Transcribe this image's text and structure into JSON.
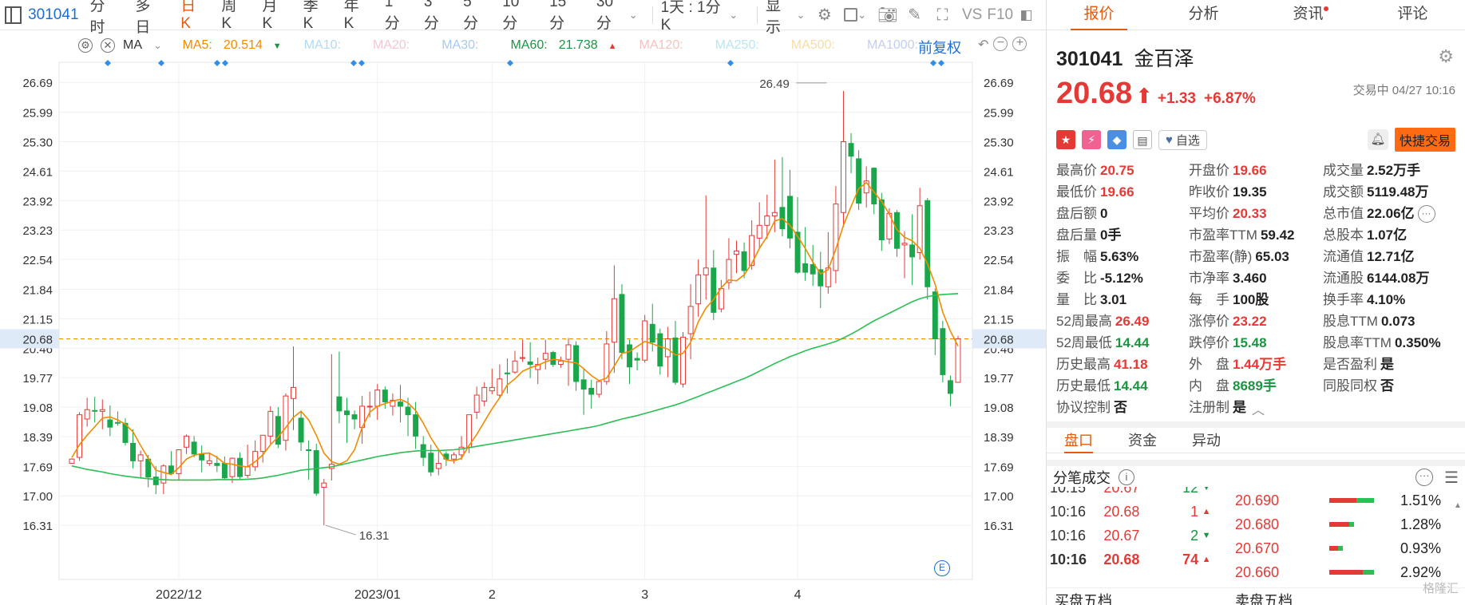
{
  "toolbar": {
    "code": "301041",
    "periods": [
      "分时",
      "多日",
      "日K",
      "周K",
      "月K",
      "季K",
      "年K",
      "1分",
      "3分",
      "5分",
      "10分",
      "15分",
      "30分"
    ],
    "active_period": "日K",
    "day_setting": "1天 : 1分K",
    "display_label": "显示",
    "vs_label": "VS",
    "f10_label": "F10"
  },
  "ma_legend": {
    "indicator": "MA",
    "items": [
      {
        "label": "MA5:",
        "value": "20.514",
        "color": "#f08c00",
        "arrow": "▼",
        "arrow_color": "#1a9641"
      },
      {
        "label": "MA10:",
        "value": "",
        "color": "#b3d9f5"
      },
      {
        "label": "MA20:",
        "value": "",
        "color": "#f5c6da"
      },
      {
        "label": "MA30:",
        "value": "",
        "color": "#a9c9f0"
      },
      {
        "label": "MA60:",
        "value": "21.738",
        "color": "#1a9641",
        "arrow": "▲",
        "arrow_color": "#e53935"
      },
      {
        "label": "MA120:",
        "value": "",
        "color": "#f5c2c2"
      },
      {
        "label": "MA250:",
        "value": "",
        "color": "#b8e6f2"
      },
      {
        "label": "MA500:",
        "value": "",
        "color": "#f7dca6"
      },
      {
        "label": "MA1000:",
        "value": "",
        "color": "#c5cdf2"
      }
    ],
    "fuquan_label": "前复权"
  },
  "chart_data": {
    "type": "candlestick",
    "y_ticks": [
      26.69,
      25.99,
      25.3,
      24.61,
      23.92,
      23.23,
      22.54,
      21.84,
      21.15,
      20.46,
      19.77,
      19.08,
      18.39,
      17.69,
      17.0,
      16.31
    ],
    "y_tick_labels": [
      "26.69",
      "25.99",
      "25.30",
      "24.61",
      "23.92",
      "23.23",
      "22.54",
      "21.84",
      "21.15",
      "20.46",
      "19.77",
      "19.08",
      "18.39",
      "17.69",
      "17.00",
      "16.31"
    ],
    "ylim": [
      15.9,
      27.05
    ],
    "x_labels": [
      {
        "label": "2022/12",
        "index": 14
      },
      {
        "label": "2023/01",
        "index": 40
      },
      {
        "label": "2",
        "index": 55
      },
      {
        "label": "3",
        "index": 75
      },
      {
        "label": "4",
        "index": 95
      }
    ],
    "current_price": 20.68,
    "current_price_label": "20.68",
    "high_label": "26.49",
    "high_index": 99,
    "low_label": "16.31",
    "low_index": 33,
    "candles": [
      [
        17.76,
        17.88,
        17.86,
        17.78
      ],
      [
        17.9,
        18.96,
        18.9,
        17.82
      ],
      [
        18.8,
        19.3,
        19.02,
        18.62
      ],
      [
        19.0,
        19.32,
        18.99,
        18.72
      ],
      [
        18.98,
        19.26,
        19.02,
        18.56
      ],
      [
        18.78,
        19.12,
        18.61,
        18.4
      ],
      [
        18.72,
        18.98,
        18.71,
        18.64
      ],
      [
        18.7,
        18.82,
        18.25,
        18.18
      ],
      [
        18.23,
        18.56,
        17.82,
        17.64
      ],
      [
        17.82,
        18.06,
        17.96,
        17.42
      ],
      [
        17.86,
        17.96,
        17.44,
        17.2
      ],
      [
        17.44,
        17.7,
        17.26,
        17.04
      ],
      [
        17.3,
        17.74,
        17.7,
        17.04
      ],
      [
        17.7,
        18.05,
        17.52,
        17.5
      ],
      [
        17.52,
        18.08,
        18.08,
        17.38
      ],
      [
        18.14,
        18.44,
        18.4,
        17.98
      ],
      [
        18.26,
        18.4,
        17.98,
        17.9
      ],
      [
        17.98,
        18.18,
        17.84,
        17.55
      ],
      [
        17.76,
        18.02,
        17.82,
        17.7
      ],
      [
        17.76,
        17.94,
        17.71,
        17.56
      ],
      [
        17.76,
        17.92,
        17.42,
        17.38
      ],
      [
        17.45,
        17.9,
        17.88,
        17.3
      ],
      [
        17.88,
        18.02,
        17.45,
        17.4
      ],
      [
        17.48,
        18.2,
        17.68,
        17.42
      ],
      [
        17.68,
        18.3,
        18.04,
        17.58
      ],
      [
        18.04,
        18.42,
        18.42,
        17.78
      ],
      [
        18.4,
        19.1,
        18.98,
        18.22
      ],
      [
        18.86,
        19.08,
        18.21,
        18.12
      ],
      [
        18.3,
        19.4,
        19.34,
        18.06
      ],
      [
        19.28,
        20.5,
        19.54,
        18.54
      ],
      [
        18.82,
        19.0,
        18.26,
        18.05
      ],
      [
        18.08,
        18.3,
        18.06,
        17.38
      ],
      [
        18.06,
        18.22,
        17.06,
        17.0
      ],
      [
        17.2,
        17.4,
        17.3,
        16.31
      ],
      [
        17.64,
        20.32,
        17.74,
        17.36
      ],
      [
        19.32,
        20.38,
        18.99,
        18.7
      ],
      [
        18.99,
        19.3,
        18.9,
        18.24
      ],
      [
        18.9,
        19.0,
        18.8,
        18.56
      ],
      [
        18.6,
        19.34,
        19.1,
        18.22
      ],
      [
        19.1,
        19.44,
        19.1,
        18.84
      ],
      [
        19.1,
        19.62,
        19.48,
        18.78
      ],
      [
        19.48,
        19.56,
        19.2,
        19.04
      ],
      [
        19.1,
        19.4,
        19.24,
        18.88
      ],
      [
        19.2,
        19.6,
        19.1,
        18.72
      ],
      [
        19.08,
        19.3,
        18.9,
        18.4
      ],
      [
        18.9,
        19.2,
        18.4,
        18.1
      ],
      [
        18.2,
        18.4,
        17.9,
        17.7
      ],
      [
        18.0,
        18.2,
        17.56,
        17.46
      ],
      [
        17.64,
        18.1,
        17.76,
        17.48
      ],
      [
        17.98,
        18.04,
        17.86,
        17.7
      ],
      [
        17.86,
        18.02,
        17.96,
        17.76
      ],
      [
        17.96,
        18.4,
        18.14,
        17.84
      ],
      [
        18.14,
        18.9,
        18.9,
        18.0
      ],
      [
        18.96,
        19.56,
        19.36,
        18.8
      ],
      [
        19.22,
        19.66,
        19.54,
        19.1
      ],
      [
        19.46,
        19.98,
        19.54,
        19.38
      ],
      [
        19.36,
        20.08,
        19.74,
        19.3
      ],
      [
        19.88,
        20.22,
        19.86,
        19.4
      ],
      [
        19.9,
        20.4,
        20.16,
        19.86
      ],
      [
        20.22,
        20.66,
        20.24,
        20.14
      ],
      [
        20.14,
        20.6,
        20.08,
        19.76
      ],
      [
        19.96,
        20.24,
        20.08,
        19.62
      ],
      [
        20.2,
        20.66,
        20.34,
        19.96
      ],
      [
        20.36,
        20.4,
        20.08,
        20.02
      ],
      [
        20.08,
        20.26,
        20.16,
        20.0
      ],
      [
        20.2,
        20.7,
        20.54,
        19.58
      ],
      [
        20.52,
        20.62,
        19.68,
        19.46
      ],
      [
        19.72,
        19.98,
        19.5,
        18.9
      ],
      [
        19.52,
        19.72,
        19.38,
        19.04
      ],
      [
        19.38,
        19.7,
        19.68,
        19.3
      ],
      [
        19.68,
        20.86,
        20.56,
        19.6
      ],
      [
        20.6,
        22.4,
        21.62,
        19.88
      ],
      [
        21.72,
        21.96,
        20.36,
        20.2
      ],
      [
        20.54,
        20.66,
        20.02,
        19.62
      ],
      [
        20.22,
        20.36,
        20.18,
        19.94
      ],
      [
        20.18,
        21.24,
        21.1,
        20.12
      ],
      [
        21.02,
        21.5,
        20.6,
        20.38
      ],
      [
        20.8,
        20.92,
        20.04,
        19.84
      ],
      [
        20.26,
        20.96,
        20.68,
        19.78
      ],
      [
        20.7,
        21.1,
        19.66,
        19.6
      ],
      [
        19.62,
        20.84,
        20.72,
        19.54
      ],
      [
        20.8,
        21.96,
        21.44,
        20.2
      ],
      [
        21.5,
        22.54,
        22.18,
        21.2
      ],
      [
        22.18,
        24.04,
        22.34,
        21.6
      ],
      [
        22.34,
        22.76,
        21.3,
        21.12
      ],
      [
        21.38,
        22.06,
        21.86,
        21.3
      ],
      [
        22.0,
        23.04,
        22.54,
        21.84
      ],
      [
        22.66,
        22.98,
        22.74,
        22.22
      ],
      [
        22.72,
        22.94,
        22.28,
        22.1
      ],
      [
        22.4,
        23.46,
        23.1,
        22.3
      ],
      [
        23.04,
        23.88,
        23.34,
        22.8
      ],
      [
        23.34,
        24.06,
        23.56,
        23.02
      ],
      [
        23.56,
        24.88,
        23.64,
        23.18
      ],
      [
        23.76,
        24.94,
        23.26,
        23.08
      ],
      [
        24.02,
        24.64,
        23.04,
        22.8
      ],
      [
        23.18,
        24.0,
        22.24,
        22.2
      ],
      [
        22.44,
        23.3,
        22.24,
        22.04
      ],
      [
        22.42,
        22.88,
        22.2,
        21.92
      ],
      [
        22.3,
        22.72,
        21.92,
        21.4
      ],
      [
        21.9,
        23.18,
        22.34,
        21.74
      ],
      [
        22.28,
        24.26,
        23.84,
        21.98
      ],
      [
        23.64,
        26.49,
        25.3,
        23.3
      ],
      [
        25.26,
        25.5,
        24.96,
        24.56
      ],
      [
        24.9,
        25.1,
        23.86,
        23.7
      ],
      [
        24.1,
        24.72,
        24.38,
        23.76
      ],
      [
        24.68,
        24.7,
        23.84,
        23.6
      ],
      [
        23.94,
        24.1,
        23.0,
        22.74
      ],
      [
        23.02,
        23.74,
        23.62,
        22.9
      ],
      [
        23.64,
        23.7,
        22.8,
        22.6
      ],
      [
        22.88,
        23.2,
        22.92,
        22.1
      ],
      [
        22.88,
        23.6,
        22.6,
        21.94
      ],
      [
        22.7,
        24.22,
        23.8,
        22.54
      ],
      [
        23.92,
        23.98,
        21.9,
        21.6
      ],
      [
        21.78,
        21.86,
        20.68,
        20.3
      ],
      [
        20.92,
        21.1,
        19.84,
        19.66
      ],
      [
        19.7,
        19.82,
        19.4,
        19.1
      ],
      [
        19.66,
        20.75,
        20.68,
        19.66
      ]
    ],
    "ma5": [
      17.9,
      18.2,
      18.42,
      18.62,
      18.82,
      18.85,
      18.78,
      18.68,
      18.5,
      18.18,
      17.88,
      17.6,
      17.55,
      17.5,
      17.66,
      17.86,
      17.95,
      17.99,
      18.0,
      17.9,
      17.76,
      17.74,
      17.7,
      17.68,
      17.8,
      17.96,
      18.2,
      18.38,
      18.6,
      18.84,
      18.98,
      18.78,
      18.42,
      18.0,
      17.8,
      17.74,
      17.82,
      18.08,
      18.6,
      18.96,
      19.1,
      19.16,
      19.22,
      19.26,
      19.18,
      19.0,
      18.7,
      18.36,
      18.08,
      17.84,
      17.82,
      17.88,
      18.18,
      18.44,
      18.74,
      19.04,
      19.3,
      19.6,
      19.74,
      19.92,
      20.0,
      20.06,
      20.14,
      20.2,
      20.18,
      20.14,
      20.12,
      19.98,
      19.82,
      19.7,
      19.76,
      20.04,
      20.34,
      20.38,
      20.5,
      20.62,
      20.56,
      20.5,
      20.44,
      20.3,
      20.34,
      20.6,
      21.08,
      21.4,
      21.6,
      21.88,
      22.06,
      22.04,
      22.18,
      22.44,
      22.8,
      23.08,
      23.44,
      23.5,
      23.34,
      23.08,
      22.8,
      22.48,
      22.2,
      22.3,
      22.78,
      23.34,
      23.78,
      24.2,
      24.34,
      24.12,
      23.9,
      23.6,
      23.24,
      23.06,
      22.98,
      22.8,
      22.44,
      21.96,
      21.3,
      20.86,
      20.51
    ],
    "ma60": [
      17.7,
      17.66,
      17.62,
      17.59,
      17.56,
      17.52,
      17.49,
      17.46,
      17.44,
      17.42,
      17.4,
      17.39,
      17.38,
      17.37,
      17.37,
      17.37,
      17.37,
      17.37,
      17.37,
      17.38,
      17.38,
      17.38,
      17.38,
      17.39,
      17.4,
      17.42,
      17.45,
      17.48,
      17.52,
      17.56,
      17.6,
      17.62,
      17.64,
      17.66,
      17.68,
      17.72,
      17.76,
      17.8,
      17.84,
      17.88,
      17.92,
      17.95,
      17.98,
      18.01,
      18.03,
      18.05,
      18.06,
      18.06,
      18.06,
      18.07,
      18.08,
      18.1,
      18.13,
      18.16,
      18.19,
      18.22,
      18.25,
      18.28,
      18.31,
      18.34,
      18.37,
      18.4,
      18.43,
      18.46,
      18.49,
      18.52,
      18.55,
      18.58,
      18.61,
      18.65,
      18.7,
      18.75,
      18.8,
      18.84,
      18.88,
      18.93,
      18.98,
      19.03,
      19.08,
      19.13,
      19.19,
      19.26,
      19.33,
      19.4,
      19.47,
      19.54,
      19.61,
      19.68,
      19.75,
      19.83,
      19.92,
      20.01,
      20.1,
      20.18,
      20.26,
      20.33,
      20.4,
      20.46,
      20.51,
      20.56,
      20.62,
      20.7,
      20.79,
      20.89,
      21.0,
      21.1,
      21.19,
      21.28,
      21.37,
      21.46,
      21.55,
      21.62,
      21.67,
      21.7,
      21.72,
      21.73,
      21.74
    ]
  },
  "panel": {
    "tabs": [
      "报价",
      "分析",
      "资讯",
      "评论"
    ],
    "active_tab": "报价",
    "code": "301041",
    "name": "金百泽",
    "price": "20.68",
    "arrow": "⬆",
    "change": "+1.33",
    "change_pct": "+6.87%",
    "status": "交易中 04/27 10:16",
    "zixuan_label": "自选",
    "trade_label": "快捷交易",
    "quote": [
      [
        {
          "l": "最高价",
          "v": "20.75",
          "c": "red"
        },
        {
          "l": "开盘价",
          "v": "19.66",
          "c": "red"
        },
        {
          "l": "成交量",
          "v": "2.52万手",
          "c": "dark"
        }
      ],
      [
        {
          "l": "最低价",
          "v": "19.66",
          "c": "red"
        },
        {
          "l": "昨收价",
          "v": "19.35",
          "c": "dark"
        },
        {
          "l": "成交额",
          "v": "5119.48万",
          "c": "dark"
        }
      ],
      [
        {
          "l": "盘后额",
          "v": "0",
          "c": "dark"
        },
        {
          "l": "平均价",
          "v": "20.33",
          "c": "red"
        },
        {
          "l": "总市值",
          "v": "22.06亿",
          "c": "dark"
        }
      ],
      [
        {
          "l": "盘后量",
          "v": "0手",
          "c": "dark"
        },
        {
          "l": "市盈率TTM",
          "v": "59.42",
          "c": "dark"
        },
        {
          "l": "总股本",
          "v": "1.07亿",
          "c": "dark"
        }
      ],
      [
        {
          "l": "振　幅",
          "v": "5.63%",
          "c": "dark"
        },
        {
          "l": "市盈率(静)",
          "v": "65.03",
          "c": "dark"
        },
        {
          "l": "流通值",
          "v": "12.71亿",
          "c": "dark"
        }
      ],
      [
        {
          "l": "委　比",
          "v": "-5.12%",
          "c": "dark"
        },
        {
          "l": "市净率",
          "v": "3.460",
          "c": "dark"
        },
        {
          "l": "流通股",
          "v": "6144.08万",
          "c": "dark"
        }
      ],
      [
        {
          "l": "量　比",
          "v": "3.01",
          "c": "dark"
        },
        {
          "l": "每　手",
          "v": "100股",
          "c": "dark"
        },
        {
          "l": "换手率",
          "v": "4.10%",
          "c": "dark"
        }
      ],
      [
        {
          "l": "52周最高",
          "v": "26.49",
          "c": "red"
        },
        {
          "l": "涨停价",
          "v": "23.22",
          "c": "red"
        },
        {
          "l": "股息TTM",
          "v": "0.073",
          "c": "dark"
        }
      ],
      [
        {
          "l": "52周最低",
          "v": "14.44",
          "c": "green"
        },
        {
          "l": "跌停价",
          "v": "15.48",
          "c": "green"
        },
        {
          "l": "股息率TTM",
          "v": "0.350%",
          "c": "dark"
        }
      ],
      [
        {
          "l": "历史最高",
          "v": "41.18",
          "c": "red"
        },
        {
          "l": "外　盘",
          "v": "1.44万手",
          "c": "red"
        },
        {
          "l": "是否盈利",
          "v": "是",
          "c": "dark"
        }
      ],
      [
        {
          "l": "历史最低",
          "v": "14.44",
          "c": "green"
        },
        {
          "l": "内　盘",
          "v": "8689手",
          "c": "green"
        },
        {
          "l": "同股同权",
          "v": "否",
          "c": "dark"
        }
      ],
      [
        {
          "l": "协议控制",
          "v": "否",
          "c": "dark"
        },
        {
          "l": "注册制",
          "v": "是",
          "c": "dark"
        },
        {
          "l": "",
          "v": "",
          "c": "dark"
        }
      ]
    ],
    "subtabs": [
      "盘口",
      "资金",
      "异动"
    ],
    "active_subtab": "盘口",
    "ticks_title": "分笔成交",
    "ticks": [
      {
        "t": "10:15",
        "p": "20.67",
        "v": "12",
        "dir": "down"
      },
      {
        "t": "10:16",
        "p": "20.68",
        "v": "1",
        "dir": "up"
      },
      {
        "t": "10:16",
        "p": "20.67",
        "v": "2",
        "dir": "down"
      },
      {
        "t": "10:16",
        "p": "20.68",
        "v": "74",
        "dir": "up"
      }
    ],
    "depth": [
      {
        "p": "20.690",
        "pct": "1.51%",
        "red": 0.6,
        "green": 0.4
      },
      {
        "p": "20.680",
        "pct": "1.28%",
        "red": 0.45,
        "green": 0.1
      },
      {
        "p": "20.670",
        "pct": "0.93%",
        "red": 0.2,
        "green": 0.1
      },
      {
        "p": "20.660",
        "pct": "2.92%",
        "red": 0.75,
        "green": 0.25
      }
    ],
    "buy_label": "买盘五档",
    "sell_label": "卖盘五档",
    "watermark": "格隆汇"
  }
}
